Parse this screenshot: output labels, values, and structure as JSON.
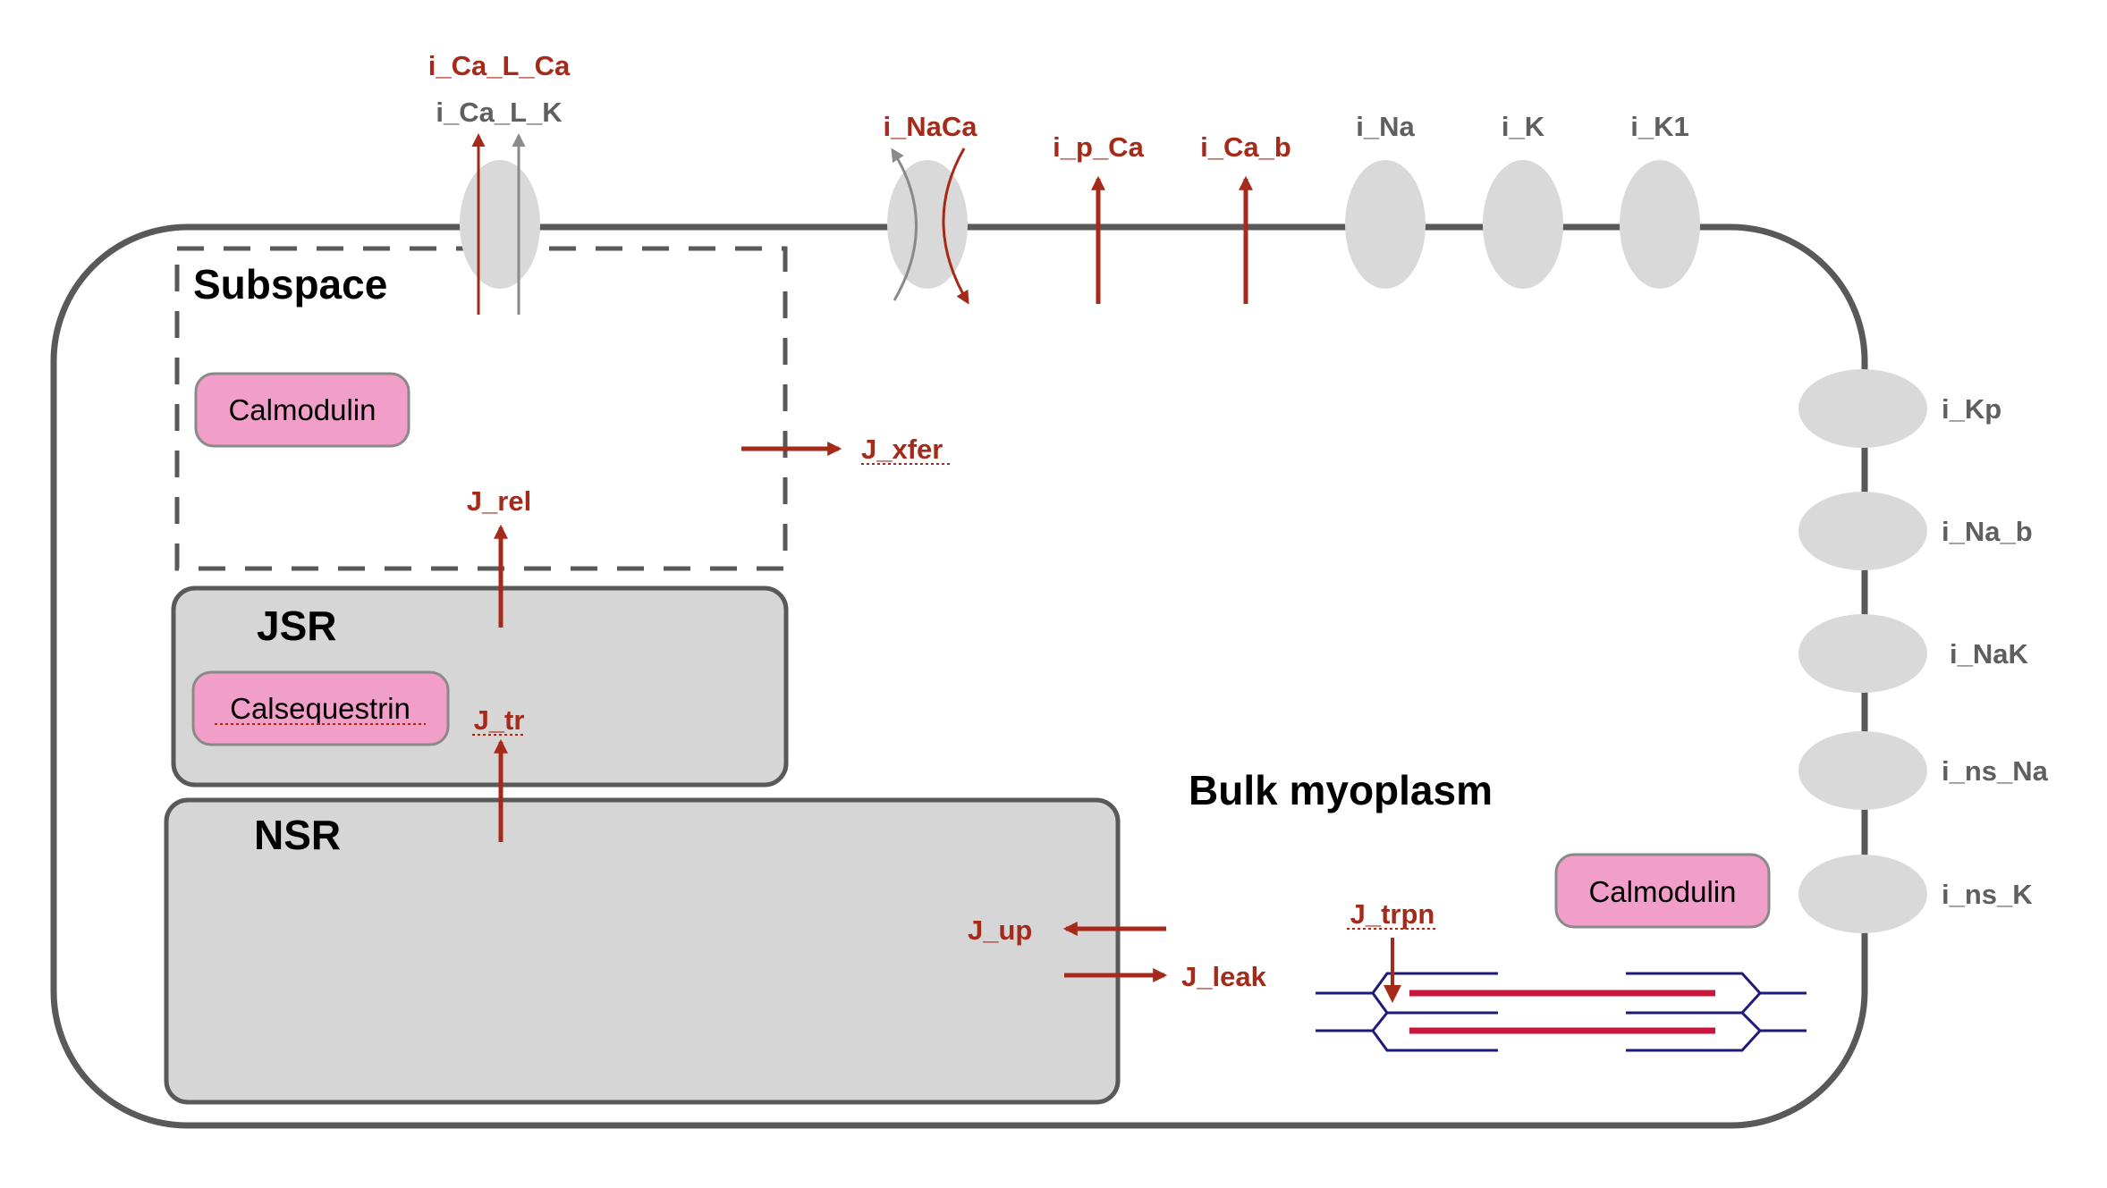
{
  "compartments": {
    "subspace": "Subspace",
    "jsr": "JSR",
    "nsr": "NSR",
    "bulk": "Bulk myoplasm"
  },
  "proteins": {
    "calmodulin_subspace": "Calmodulin",
    "calsequestrin": "Calsequestrin",
    "calmodulin_bulk": "Calmodulin"
  },
  "currents_top": {
    "i_ca_l_ca": "i_Ca_L_Ca",
    "i_ca_l_k": "i_Ca_L_K",
    "i_naca": "i_NaCa",
    "i_p_ca": "i_p_Ca",
    "i_ca_b": "i_Ca_b",
    "i_na": "i_Na",
    "i_k": "i_K",
    "i_k1": "i_K1"
  },
  "currents_right": {
    "i_kp": "i_Kp",
    "i_na_b": "i_Na_b",
    "i_nak": "i_NaK",
    "i_ns_na": "i_ns_Na",
    "i_ns_k": "i_ns_K"
  },
  "fluxes": {
    "j_xfer": "J_xfer",
    "j_rel": "J_rel",
    "j_tr": "J_tr",
    "j_up": "J_up",
    "j_leak": "J_leak",
    "j_trpn": "J_trpn"
  },
  "colors": {
    "calcium_red": "#a52a1a",
    "potassium_grey": "#8a8a8a",
    "channel_fill": "#d9d9d9",
    "organelle_fill": "#d6d6d6",
    "protein_pink": "#f19ec8",
    "membrane": "#595959",
    "myofilament_blue": "#1f1a7a",
    "myofilament_red": "#c8163c"
  }
}
